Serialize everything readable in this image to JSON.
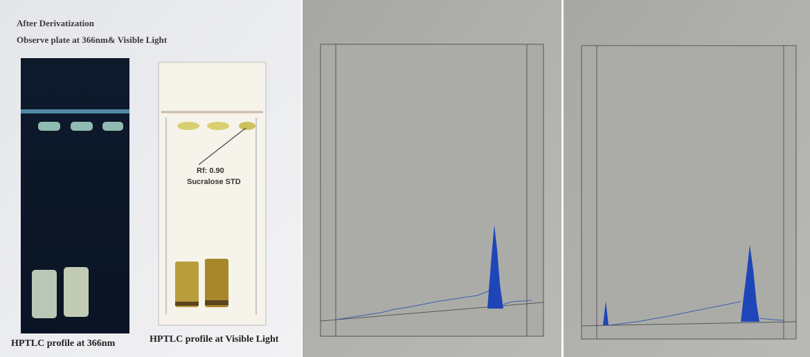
{
  "header": {
    "line1": "After Derivatization",
    "line2": "Observe plate at 366nm& Visible Light"
  },
  "plates": [
    {
      "caption": "HPTLC profile at 366nm"
    },
    {
      "caption": "HPTLC profile at Visible Light",
      "annotation": [
        "Rf: 0.90",
        "Sucralose STD"
      ]
    }
  ]
}
